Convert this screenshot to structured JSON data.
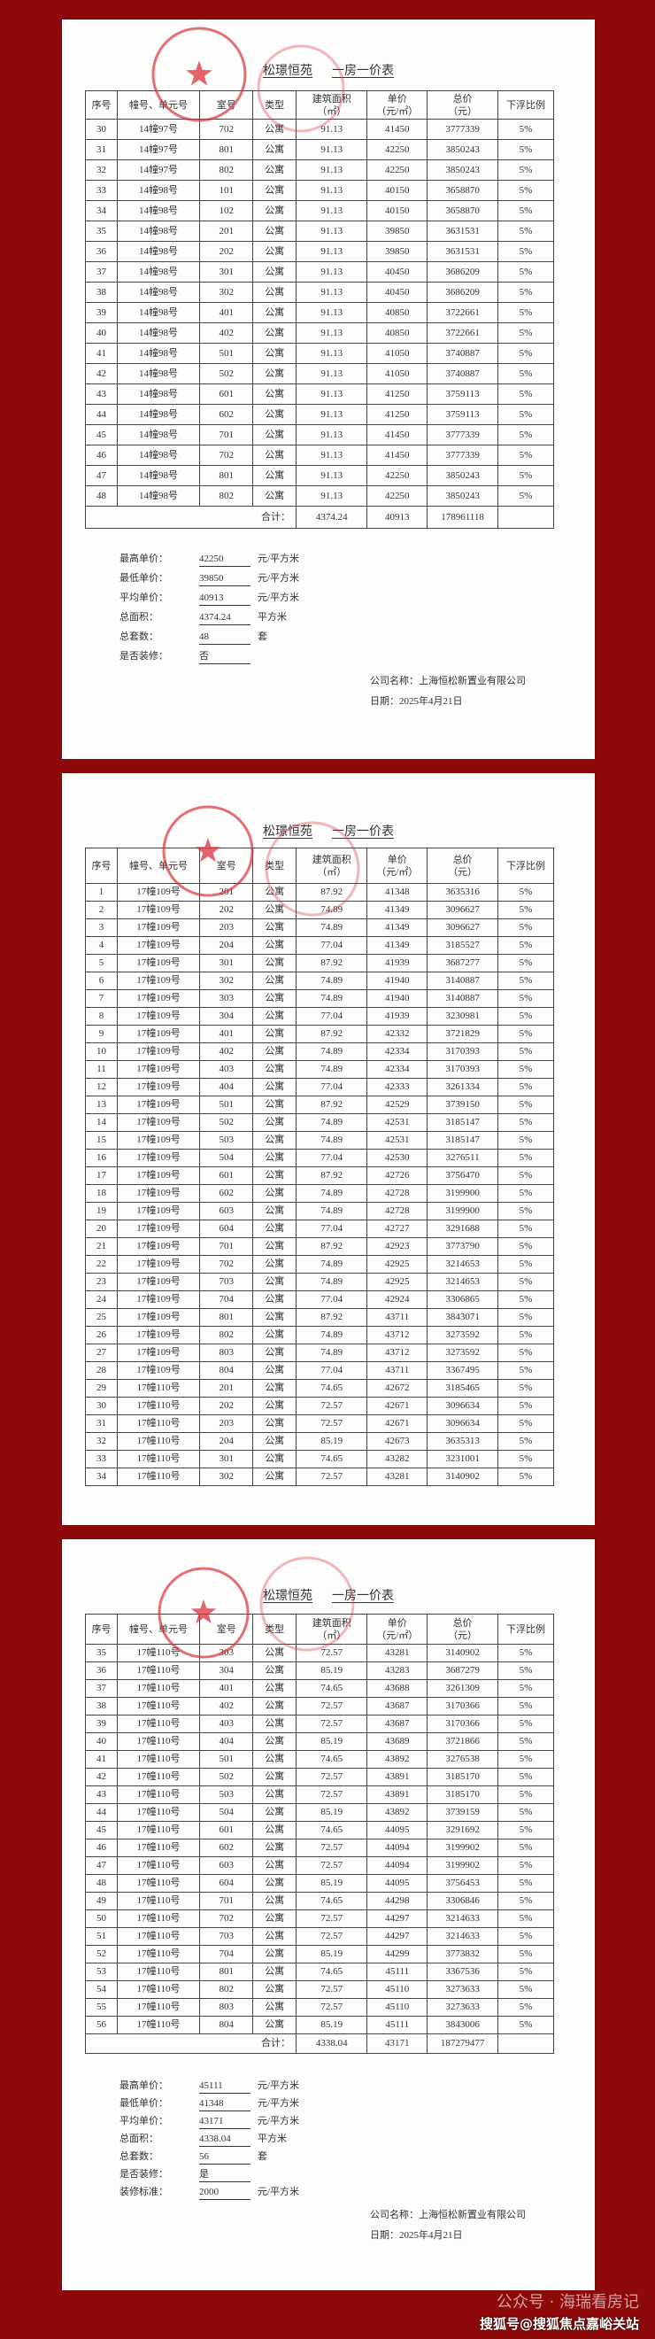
{
  "columns": [
    "序号",
    "幢号、单元号",
    "室号",
    "类型",
    "建筑面积\n（㎡）",
    "单价\n（元/㎡）",
    "总价\n（元）",
    "下浮比例"
  ],
  "title": {
    "project": "松璟恒苑",
    "doc": "一房一价表"
  },
  "colors": {
    "background": "#8e0a0a",
    "stamp": "#d9303a"
  },
  "pages": [
    {
      "rows": [
        [
          "30",
          "14幢97号",
          "702",
          "公寓",
          "91.13",
          "41450",
          "3777339",
          "5%"
        ],
        [
          "31",
          "14幢97号",
          "801",
          "公寓",
          "91.13",
          "42250",
          "3850243",
          "5%"
        ],
        [
          "32",
          "14幢97号",
          "802",
          "公寓",
          "91.13",
          "42250",
          "3850243",
          "5%"
        ],
        [
          "33",
          "14幢98号",
          "101",
          "公寓",
          "91.13",
          "40150",
          "3658870",
          "5%"
        ],
        [
          "34",
          "14幢98号",
          "102",
          "公寓",
          "91.13",
          "40150",
          "3658870",
          "5%"
        ],
        [
          "35",
          "14幢98号",
          "201",
          "公寓",
          "91.13",
          "39850",
          "3631531",
          "5%"
        ],
        [
          "36",
          "14幢98号",
          "202",
          "公寓",
          "91.13",
          "39850",
          "3631531",
          "5%"
        ],
        [
          "37",
          "14幢98号",
          "301",
          "公寓",
          "91.13",
          "40450",
          "3686209",
          "5%"
        ],
        [
          "38",
          "14幢98号",
          "302",
          "公寓",
          "91.13",
          "40450",
          "3686209",
          "5%"
        ],
        [
          "39",
          "14幢98号",
          "401",
          "公寓",
          "91.13",
          "40850",
          "3722661",
          "5%"
        ],
        [
          "40",
          "14幢98号",
          "402",
          "公寓",
          "91.13",
          "40850",
          "3722661",
          "5%"
        ],
        [
          "41",
          "14幢98号",
          "501",
          "公寓",
          "91.13",
          "41050",
          "3740887",
          "5%"
        ],
        [
          "42",
          "14幢98号",
          "502",
          "公寓",
          "91.13",
          "41050",
          "3740887",
          "5%"
        ],
        [
          "43",
          "14幢98号",
          "601",
          "公寓",
          "91.13",
          "41250",
          "3759113",
          "5%"
        ],
        [
          "44",
          "14幢98号",
          "602",
          "公寓",
          "91.13",
          "41250",
          "3759113",
          "5%"
        ],
        [
          "45",
          "14幢98号",
          "701",
          "公寓",
          "91.13",
          "41450",
          "3777339",
          "5%"
        ],
        [
          "46",
          "14幢98号",
          "702",
          "公寓",
          "91.13",
          "41450",
          "3777339",
          "5%"
        ],
        [
          "47",
          "14幢98号",
          "801",
          "公寓",
          "91.13",
          "42250",
          "3850243",
          "5%"
        ],
        [
          "48",
          "14幢98号",
          "802",
          "公寓",
          "91.13",
          "42250",
          "3850243",
          "5%"
        ]
      ],
      "total": {
        "label": "合计：",
        "area": "4374.24",
        "unit_price": "40913",
        "total_price": "178961118"
      },
      "summary": [
        {
          "label": "最高单价：",
          "value": "42250",
          "unit": "元/平方米"
        },
        {
          "label": "最低单价：",
          "value": "39850",
          "unit": "元/平方米"
        },
        {
          "label": "平均单价：",
          "value": "40913",
          "unit": "元/平方米"
        },
        {
          "label": "总面积：",
          "value": "4374.24",
          "unit": "平方米"
        },
        {
          "label": "总套数：",
          "value": "48",
          "unit": "套"
        },
        {
          "label": "是否装修：",
          "value": "否",
          "unit": ""
        }
      ],
      "company": "公司名称：上海恒松新置业有限公司",
      "date": "日期：2025年4月21日"
    },
    {
      "rows": [
        [
          "1",
          "17幢109号",
          "201",
          "公寓",
          "87.92",
          "41348",
          "3635316",
          "5%"
        ],
        [
          "2",
          "17幢109号",
          "202",
          "公寓",
          "74.89",
          "41349",
          "3096627",
          "5%"
        ],
        [
          "3",
          "17幢109号",
          "203",
          "公寓",
          "74.89",
          "41349",
          "3096627",
          "5%"
        ],
        [
          "4",
          "17幢109号",
          "204",
          "公寓",
          "77.04",
          "41349",
          "3185527",
          "5%"
        ],
        [
          "5",
          "17幢109号",
          "301",
          "公寓",
          "87.92",
          "41939",
          "3687277",
          "5%"
        ],
        [
          "6",
          "17幢109号",
          "302",
          "公寓",
          "74.89",
          "41940",
          "3140887",
          "5%"
        ],
        [
          "7",
          "17幢109号",
          "303",
          "公寓",
          "74.89",
          "41940",
          "3140887",
          "5%"
        ],
        [
          "8",
          "17幢109号",
          "304",
          "公寓",
          "77.04",
          "41939",
          "3230981",
          "5%"
        ],
        [
          "9",
          "17幢109号",
          "401",
          "公寓",
          "87.92",
          "42332",
          "3721829",
          "5%"
        ],
        [
          "10",
          "17幢109号",
          "402",
          "公寓",
          "74.89",
          "42334",
          "3170393",
          "5%"
        ],
        [
          "11",
          "17幢109号",
          "403",
          "公寓",
          "74.89",
          "42334",
          "3170393",
          "5%"
        ],
        [
          "12",
          "17幢109号",
          "404",
          "公寓",
          "77.04",
          "42333",
          "3261334",
          "5%"
        ],
        [
          "13",
          "17幢109号",
          "501",
          "公寓",
          "87.92",
          "42529",
          "3739150",
          "5%"
        ],
        [
          "14",
          "17幢109号",
          "502",
          "公寓",
          "74.89",
          "42531",
          "3185147",
          "5%"
        ],
        [
          "15",
          "17幢109号",
          "503",
          "公寓",
          "74.89",
          "42531",
          "3185147",
          "5%"
        ],
        [
          "16",
          "17幢109号",
          "504",
          "公寓",
          "77.04",
          "42530",
          "3276511",
          "5%"
        ],
        [
          "17",
          "17幢109号",
          "601",
          "公寓",
          "87.92",
          "42726",
          "3756470",
          "5%"
        ],
        [
          "18",
          "17幢109号",
          "602",
          "公寓",
          "74.89",
          "42728",
          "3199900",
          "5%"
        ],
        [
          "19",
          "17幢109号",
          "603",
          "公寓",
          "74.89",
          "42728",
          "3199900",
          "5%"
        ],
        [
          "20",
          "17幢109号",
          "604",
          "公寓",
          "77.04",
          "42727",
          "3291688",
          "5%"
        ],
        [
          "21",
          "17幢109号",
          "701",
          "公寓",
          "87.92",
          "42923",
          "3773790",
          "5%"
        ],
        [
          "22",
          "17幢109号",
          "702",
          "公寓",
          "74.89",
          "42925",
          "3214653",
          "5%"
        ],
        [
          "23",
          "17幢109号",
          "703",
          "公寓",
          "74.89",
          "42925",
          "3214653",
          "5%"
        ],
        [
          "24",
          "17幢109号",
          "704",
          "公寓",
          "77.04",
          "42924",
          "3306865",
          "5%"
        ],
        [
          "25",
          "17幢109号",
          "801",
          "公寓",
          "87.92",
          "43711",
          "3843071",
          "5%"
        ],
        [
          "26",
          "17幢109号",
          "802",
          "公寓",
          "74.89",
          "43712",
          "3273592",
          "5%"
        ],
        [
          "27",
          "17幢109号",
          "803",
          "公寓",
          "74.89",
          "43712",
          "3273592",
          "5%"
        ],
        [
          "28",
          "17幢109号",
          "804",
          "公寓",
          "77.04",
          "43711",
          "3367495",
          "5%"
        ],
        [
          "29",
          "17幢110号",
          "201",
          "公寓",
          "74.65",
          "42672",
          "3185465",
          "5%"
        ],
        [
          "30",
          "17幢110号",
          "202",
          "公寓",
          "72.57",
          "42671",
          "3096634",
          "5%"
        ],
        [
          "31",
          "17幢110号",
          "203",
          "公寓",
          "72.57",
          "42671",
          "3096634",
          "5%"
        ],
        [
          "32",
          "17幢110号",
          "204",
          "公寓",
          "85.19",
          "42673",
          "3635313",
          "5%"
        ],
        [
          "33",
          "17幢110号",
          "301",
          "公寓",
          "74.65",
          "43282",
          "3231001",
          "5%"
        ],
        [
          "34",
          "17幢110号",
          "302",
          "公寓",
          "72.57",
          "43281",
          "3140902",
          "5%"
        ]
      ]
    },
    {
      "rows": [
        [
          "35",
          "17幢110号",
          "303",
          "公寓",
          "72.57",
          "43281",
          "3140902",
          "5%"
        ],
        [
          "36",
          "17幢110号",
          "304",
          "公寓",
          "85.19",
          "43283",
          "3687279",
          "5%"
        ],
        [
          "37",
          "17幢110号",
          "401",
          "公寓",
          "74.65",
          "43688",
          "3261309",
          "5%"
        ],
        [
          "38",
          "17幢110号",
          "402",
          "公寓",
          "72.57",
          "43687",
          "3170366",
          "5%"
        ],
        [
          "39",
          "17幢110号",
          "403",
          "公寓",
          "72.57",
          "43687",
          "3170366",
          "5%"
        ],
        [
          "40",
          "17幢110号",
          "404",
          "公寓",
          "85.19",
          "43689",
          "3721866",
          "5%"
        ],
        [
          "41",
          "17幢110号",
          "501",
          "公寓",
          "74.65",
          "43892",
          "3276538",
          "5%"
        ],
        [
          "42",
          "17幢110号",
          "502",
          "公寓",
          "72.57",
          "43891",
          "3185170",
          "5%"
        ],
        [
          "43",
          "17幢110号",
          "503",
          "公寓",
          "72.57",
          "43891",
          "3185170",
          "5%"
        ],
        [
          "44",
          "17幢110号",
          "504",
          "公寓",
          "85.19",
          "43892",
          "3739159",
          "5%"
        ],
        [
          "45",
          "17幢110号",
          "601",
          "公寓",
          "74.65",
          "44095",
          "3291692",
          "5%"
        ],
        [
          "46",
          "17幢110号",
          "602",
          "公寓",
          "72.57",
          "44094",
          "3199902",
          "5%"
        ],
        [
          "47",
          "17幢110号",
          "603",
          "公寓",
          "72.57",
          "44094",
          "3199902",
          "5%"
        ],
        [
          "48",
          "17幢110号",
          "604",
          "公寓",
          "85.19",
          "44095",
          "3756453",
          "5%"
        ],
        [
          "49",
          "17幢110号",
          "701",
          "公寓",
          "74.65",
          "44298",
          "3306846",
          "5%"
        ],
        [
          "50",
          "17幢110号",
          "702",
          "公寓",
          "72.57",
          "44297",
          "3214633",
          "5%"
        ],
        [
          "51",
          "17幢110号",
          "703",
          "公寓",
          "72.57",
          "44297",
          "3214633",
          "5%"
        ],
        [
          "52",
          "17幢110号",
          "704",
          "公寓",
          "85.19",
          "44299",
          "3773832",
          "5%"
        ],
        [
          "53",
          "17幢110号",
          "801",
          "公寓",
          "74.65",
          "45111",
          "3367536",
          "5%"
        ],
        [
          "54",
          "17幢110号",
          "802",
          "公寓",
          "72.57",
          "45110",
          "3273633",
          "5%"
        ],
        [
          "55",
          "17幢110号",
          "803",
          "公寓",
          "72.57",
          "45110",
          "3273633",
          "5%"
        ],
        [
          "56",
          "17幢110号",
          "804",
          "公寓",
          "85.19",
          "45111",
          "3843006",
          "5%"
        ]
      ],
      "total": {
        "label": "合计：",
        "area": "4338.04",
        "unit_price": "43171",
        "total_price": "187279477"
      },
      "summary": [
        {
          "label": "最高单价：",
          "value": "45111",
          "unit": "元/平方米"
        },
        {
          "label": "最低单价：",
          "value": "41348",
          "unit": "元/平方米"
        },
        {
          "label": "平均单价：",
          "value": "43171",
          "unit": "元/平方米"
        },
        {
          "label": "总面积：",
          "value": "4338.04",
          "unit": "平方米"
        },
        {
          "label": "总套数：",
          "value": "56",
          "unit": "套"
        },
        {
          "label": "是否装修：",
          "value": "是",
          "unit": ""
        },
        {
          "label": "装修标准：",
          "value": "2000",
          "unit": "元/平方米"
        }
      ],
      "company": "公司名称：上海恒松新置业有限公司",
      "date": "日期：2025年4月21日"
    }
  ],
  "watermark": {
    "wechat": "公众号 · 海瑞看房记",
    "sohu": "搜狐号@搜狐焦点嘉峪关站"
  }
}
